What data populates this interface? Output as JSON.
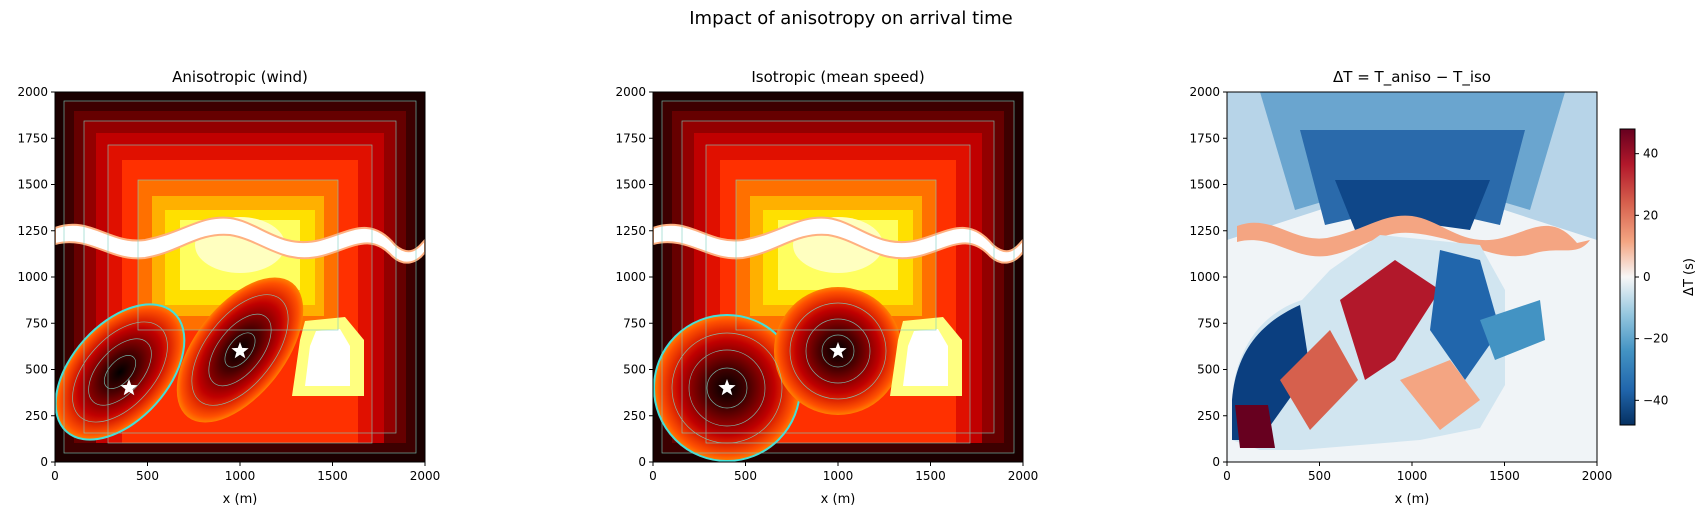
{
  "figure_title": "Impact of anisotropy on arrival time",
  "chart_data": [
    {
      "type": "heatmap",
      "title": "Anisotropic (wind)",
      "xlabel": "x (m)",
      "ylabel": "",
      "xlim": [
        0,
        2000
      ],
      "ylim": [
        0,
        2000
      ],
      "xticks": [
        0,
        500,
        1000,
        1500,
        2000
      ],
      "yticks": [
        0,
        250,
        500,
        750,
        1000,
        1250,
        1500,
        1750,
        2000
      ],
      "colormap": "hot (reversed: dark = early, white = late)",
      "contour_lines": true,
      "sources": [
        {
          "x": 400,
          "y": 400
        },
        {
          "x": 1000,
          "y": 600
        }
      ],
      "obstacles": [
        {
          "name": "wavy barrier",
          "y_center": 1225,
          "x_range": [
            0,
            2000
          ]
        },
        {
          "name": "pentagon block",
          "x_range": [
            1280,
            1600
          ],
          "y_range": [
            420,
            760
          ]
        }
      ]
    },
    {
      "type": "heatmap",
      "title": "Isotropic (mean speed)",
      "xlabel": "x (m)",
      "ylabel": "",
      "xlim": [
        0,
        2000
      ],
      "ylim": [
        0,
        2000
      ],
      "xticks": [
        0,
        500,
        1000,
        1500,
        2000
      ],
      "yticks": [
        0,
        250,
        500,
        750,
        1000,
        1250,
        1500,
        1750,
        2000
      ],
      "colormap": "hot (reversed: dark = early, white = late)",
      "contour_lines": true,
      "sources": [
        {
          "x": 400,
          "y": 400
        },
        {
          "x": 1000,
          "y": 600
        }
      ]
    },
    {
      "type": "heatmap",
      "title": "ΔT = T_aniso − T_iso",
      "xlabel": "x (m)",
      "ylabel": "",
      "xlim": [
        0,
        2000
      ],
      "ylim": [
        0,
        2000
      ],
      "xticks": [
        0,
        500,
        1000,
        1500,
        2000
      ],
      "yticks": [
        0,
        250,
        500,
        750,
        1000,
        1250,
        1500,
        1750,
        2000
      ],
      "colormap": "RdBu_r",
      "colorbar": {
        "label": "ΔT (s)",
        "range": [
          -48,
          48
        ],
        "ticks": [
          40,
          20,
          0,
          -20,
          -40
        ]
      }
    }
  ],
  "colors": {
    "dark": "#1a0000",
    "red": "#cc0000",
    "orange": "#ff6600",
    "yellow": "#ffff40",
    "white": "#ffffff",
    "cyan": "#44e0d8",
    "blue_dark": "#053061",
    "red_dark": "#67001f"
  }
}
